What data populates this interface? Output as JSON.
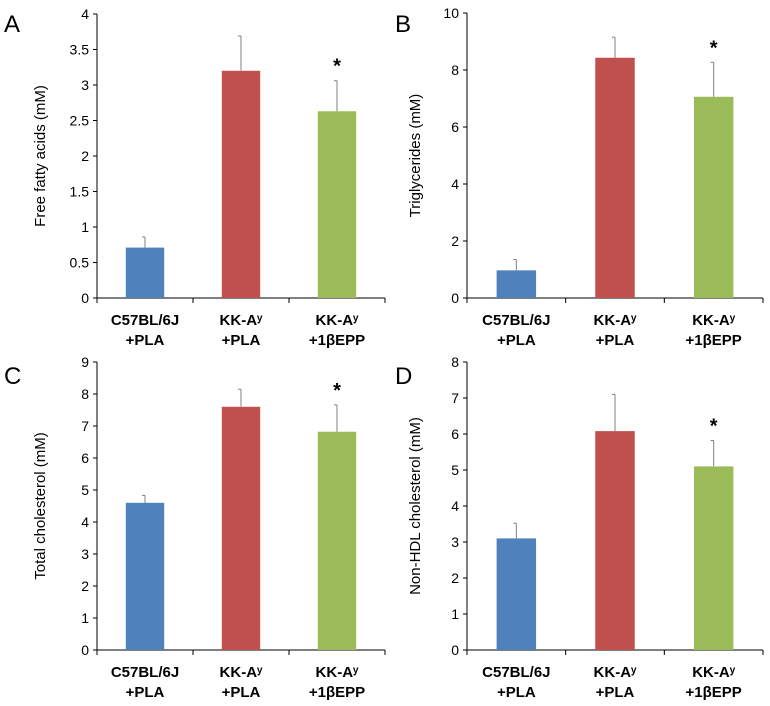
{
  "colors": {
    "blue": "#4f81bd",
    "red": "#c0504d",
    "green": "#9bbb59",
    "axis": "#000000",
    "error": "#808080"
  },
  "chart_data": [
    {
      "type": "bar",
      "panel_label": "A",
      "ylabel": "Free fatty acids (mM)",
      "ylim": [
        0,
        4
      ],
      "yticks": [
        "0",
        "0.5",
        "1",
        "1.5",
        "2",
        "2.5",
        "3",
        "3.5",
        "4"
      ],
      "tick_step": 0.5,
      "categories": [
        [
          "C57BL/6J",
          "+PLA"
        ],
        [
          "KK-Aʸ",
          "+PLA"
        ],
        [
          "KK-Aʸ",
          "+1βEPP"
        ]
      ],
      "values": [
        0.71,
        3.2,
        2.63
      ],
      "errors": [
        0.15,
        0.49,
        0.43
      ],
      "annotations": [
        "",
        "",
        "*"
      ]
    },
    {
      "type": "bar",
      "panel_label": "B",
      "ylabel": "Triglycerides (mM)",
      "ylim": [
        0,
        10
      ],
      "yticks": [
        "0",
        "2",
        "4",
        "6",
        "8",
        "10"
      ],
      "tick_step": 2,
      "categories": [
        [
          "C57BL/6J",
          "+PLA"
        ],
        [
          "KK-Aʸ",
          "+PLA"
        ],
        [
          "KK-Aʸ",
          "+1βEPP"
        ]
      ],
      "values": [
        0.97,
        8.43,
        7.06
      ],
      "errors": [
        0.38,
        0.72,
        1.21
      ],
      "annotations": [
        "",
        "",
        "*"
      ]
    },
    {
      "type": "bar",
      "panel_label": "C",
      "ylabel": "Total cholesterol (mM)",
      "ylim": [
        0,
        9
      ],
      "yticks": [
        "0",
        "1",
        "2",
        "3",
        "4",
        "5",
        "6",
        "7",
        "8",
        "9"
      ],
      "tick_step": 1,
      "categories": [
        [
          "C57BL/6J",
          "+PLA"
        ],
        [
          "KK-Aʸ",
          "+PLA"
        ],
        [
          "KK-Aʸ",
          "+1βEPP"
        ]
      ],
      "values": [
        4.6,
        7.6,
        6.82
      ],
      "errors": [
        0.23,
        0.55,
        0.84
      ],
      "annotations": [
        "",
        "",
        "*"
      ]
    },
    {
      "type": "bar",
      "panel_label": "D",
      "ylabel": "Non-HDL cholesterol (mM)",
      "ylim": [
        0,
        8
      ],
      "yticks": [
        "0",
        "1",
        "2",
        "3",
        "4",
        "5",
        "6",
        "7",
        "8"
      ],
      "tick_step": 1,
      "categories": [
        [
          "C57BL/6J",
          "+PLA"
        ],
        [
          "KK-Aʸ",
          "+PLA"
        ],
        [
          "KK-Aʸ",
          "+1βEPP"
        ]
      ],
      "values": [
        3.1,
        6.08,
        5.1
      ],
      "errors": [
        0.42,
        1.02,
        0.72
      ],
      "annotations": [
        "",
        "",
        "*"
      ]
    }
  ]
}
